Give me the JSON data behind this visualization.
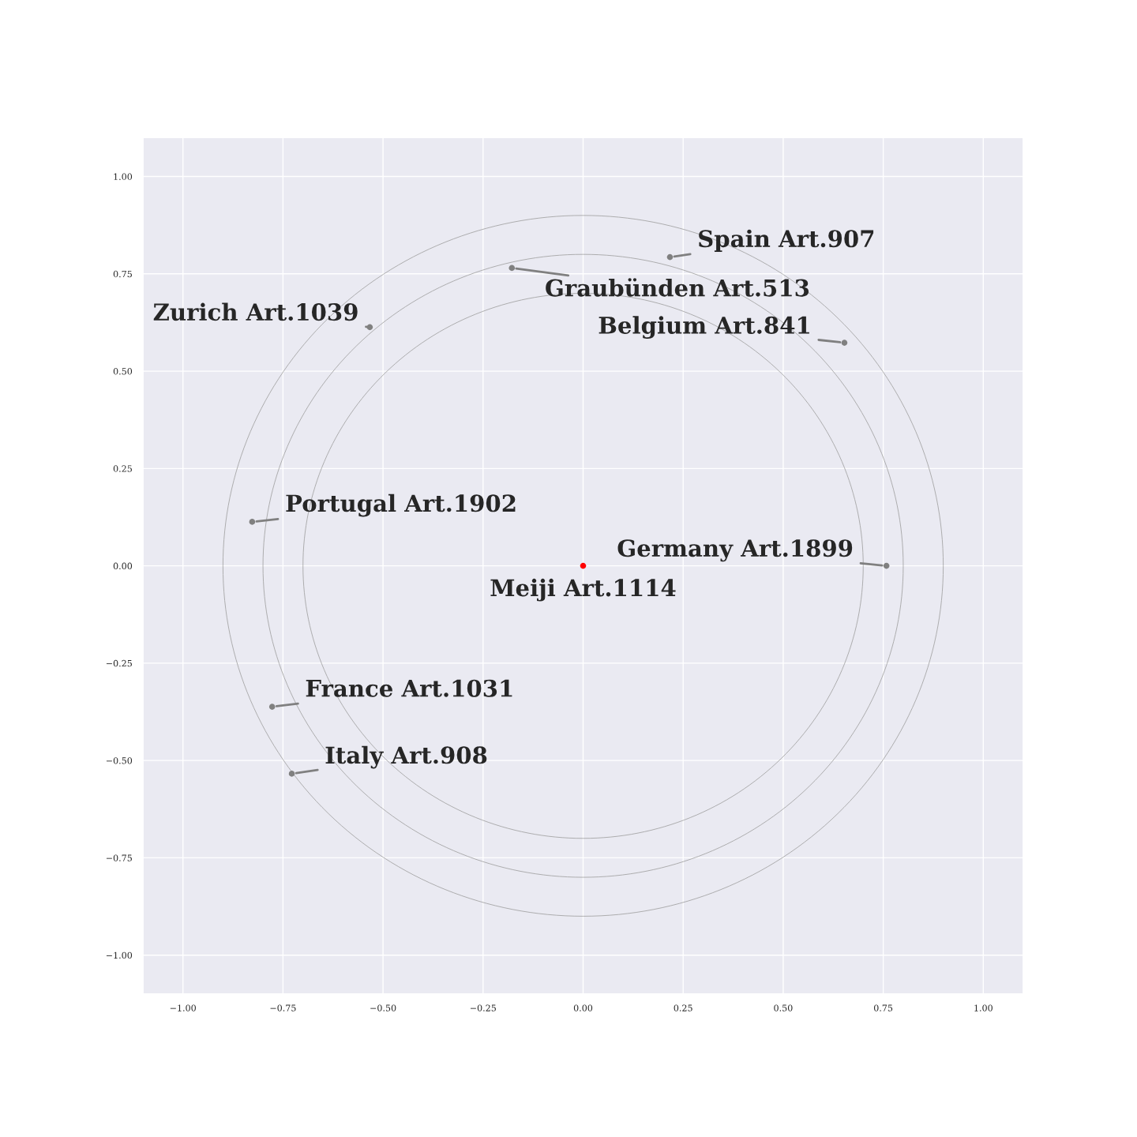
{
  "chart_data": {
    "type": "scatter",
    "xlim": [
      -1.1,
      1.1
    ],
    "ylim": [
      -1.1,
      1.1
    ],
    "xticks": [
      {
        "value": -1,
        "label": "−1.00"
      },
      {
        "value": -0.75,
        "label": "−0.75"
      },
      {
        "value": -0.5,
        "label": "−0.50"
      },
      {
        "value": -0.25,
        "label": "−0.25"
      },
      {
        "value": 0,
        "label": "0.00"
      },
      {
        "value": 0.25,
        "label": "0.25"
      },
      {
        "value": 0.5,
        "label": "0.50"
      },
      {
        "value": 0.75,
        "label": "0.75"
      },
      {
        "value": 1,
        "label": "1.00"
      }
    ],
    "yticks": [
      {
        "value": -1,
        "label": "−1.00"
      },
      {
        "value": -0.75,
        "label": "−0.75"
      },
      {
        "value": -0.5,
        "label": "−0.50"
      },
      {
        "value": -0.25,
        "label": "−0.25"
      },
      {
        "value": 0,
        "label": "0.00"
      },
      {
        "value": 0.25,
        "label": "0.25"
      },
      {
        "value": 0.5,
        "label": "0.50"
      },
      {
        "value": 0.75,
        "label": "0.75"
      },
      {
        "value": 1,
        "label": "1.00"
      }
    ],
    "grid": true,
    "legend": false,
    "marker": "circle",
    "series": [
      {
        "color": "#808080",
        "x": [
          0.217,
          -0.178,
          -0.533,
          0.653,
          -0.827,
          0.758,
          -0.777,
          -0.728
        ],
        "values": [
          0.793,
          0.765,
          0.613,
          0.573,
          0.113,
          0,
          -0.362,
          -0.534
        ]
      },
      {
        "color": "#ff0000",
        "x": [
          0
        ],
        "values": [
          0
        ]
      }
    ],
    "annotations": [
      {
        "text": "Spain Art.907",
        "x": 0.217,
        "y": 0.793
      },
      {
        "text": "Graubünden Art.513",
        "x": -0.178,
        "y": 0.765
      },
      {
        "text": "Zurich Art.1039",
        "x": -0.533,
        "y": 0.613
      },
      {
        "text": "Belgium Art.841",
        "x": 0.653,
        "y": 0.573
      },
      {
        "text": "Portugal Art.1902",
        "x": -0.827,
        "y": 0.113
      },
      {
        "text": "Germany Art.1899",
        "x": 0.758,
        "y": 0
      },
      {
        "text": "France Art.1031",
        "x": -0.777,
        "y": -0.362
      },
      {
        "text": "Italy Art.908",
        "x": -0.728,
        "y": -0.534
      },
      {
        "text": "Meiji Art.1114",
        "x": 0,
        "y": 0
      }
    ]
  }
}
